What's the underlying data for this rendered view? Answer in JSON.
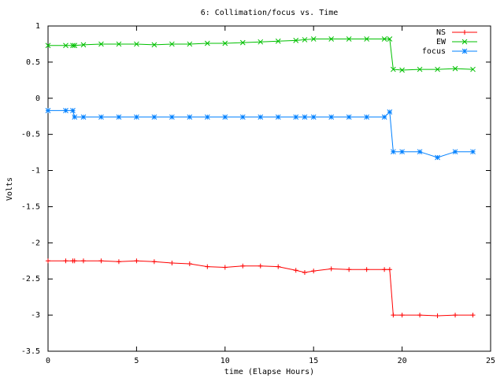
{
  "chart_data": {
    "type": "line",
    "title": "6: Collimation/focus vs. Time",
    "x_label": "time (Elapse Hours)",
    "y_label": "Volts",
    "x": [
      0,
      1,
      1.4,
      1.5,
      2,
      3,
      4,
      5,
      6,
      7,
      8,
      9,
      10,
      11,
      12,
      13,
      14,
      14.5,
      15,
      16,
      17,
      18,
      19,
      19.3,
      19.5,
      20,
      21,
      22,
      23,
      24
    ],
    "series": [
      {
        "name": "NS",
        "color": "#ff0000",
        "marker": "plus",
        "values": [
          -2.25,
          -2.25,
          -2.25,
          -2.25,
          -2.25,
          -2.25,
          -2.26,
          -2.25,
          -2.26,
          -2.28,
          -2.29,
          -2.33,
          -2.34,
          -2.32,
          -2.32,
          -2.33,
          -2.38,
          -2.41,
          -2.39,
          -2.36,
          -2.37,
          -2.37,
          -2.37,
          -2.37,
          -3.0,
          -3.0,
          -3.0,
          -3.01,
          -3.0,
          -3.0
        ]
      },
      {
        "name": "EW",
        "color": "#00c000",
        "marker": "cross",
        "values": [
          0.73,
          0.73,
          0.73,
          0.73,
          0.74,
          0.75,
          0.75,
          0.75,
          0.74,
          0.75,
          0.75,
          0.76,
          0.76,
          0.77,
          0.78,
          0.79,
          0.8,
          0.81,
          0.82,
          0.82,
          0.82,
          0.82,
          0.82,
          0.82,
          0.4,
          0.39,
          0.4,
          0.4,
          0.41,
          0.4
        ]
      },
      {
        "name": "focus",
        "color": "#0080ff",
        "marker": "star",
        "values": [
          -0.17,
          -0.17,
          -0.17,
          -0.26,
          -0.26,
          -0.26,
          -0.26,
          -0.26,
          -0.26,
          -0.26,
          -0.26,
          -0.26,
          -0.26,
          -0.26,
          -0.26,
          -0.26,
          -0.26,
          -0.26,
          -0.26,
          -0.26,
          -0.26,
          -0.26,
          -0.26,
          -0.19,
          -0.74,
          -0.74,
          -0.74,
          -0.82,
          -0.74,
          -0.74
        ]
      }
    ],
    "xlim": [
      0,
      25
    ],
    "xticks": [
      0,
      5,
      10,
      15,
      20,
      25
    ],
    "ylim": [
      -3.5,
      1
    ],
    "yticks": [
      -3.5,
      -3,
      -2.5,
      -2,
      -1.5,
      -1,
      -0.5,
      0,
      0.5,
      1
    ],
    "grid": false,
    "legend": "top-right"
  }
}
